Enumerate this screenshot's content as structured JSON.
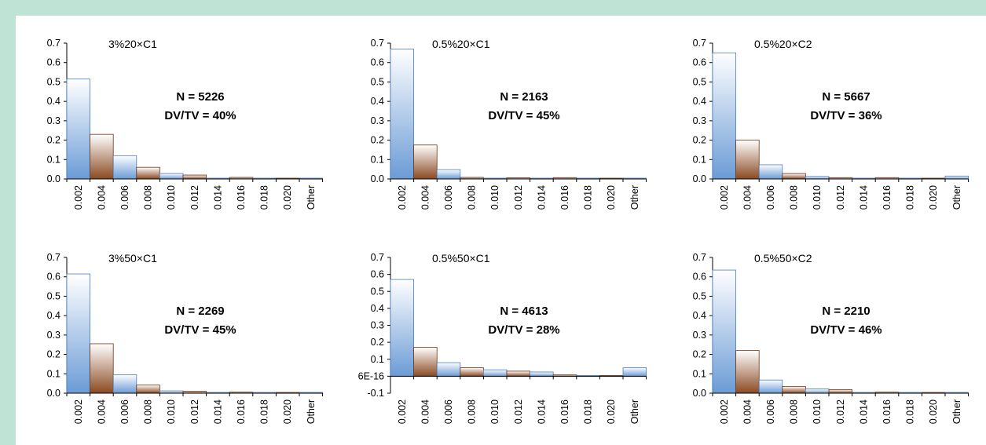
{
  "chart_data": [
    {
      "type": "bar",
      "title": "3%20×C1",
      "n_label": "N = 5226",
      "ratio_label": "DV/TV = 40%",
      "categories": [
        "0.002",
        "0.004",
        "0.006",
        "0.008",
        "0.010",
        "0.012",
        "0.014",
        "0.016",
        "0.018",
        "0.020",
        "Other"
      ],
      "values": [
        0.515,
        0.23,
        0.12,
        0.06,
        0.028,
        0.02,
        0.004,
        0.008,
        0.003,
        0.004,
        0.002
      ],
      "yticks": [
        "0.0",
        "0.1",
        "0.2",
        "0.3",
        "0.4",
        "0.5",
        "0.6",
        "0.7"
      ],
      "ylim": [
        0,
        0.7
      ]
    },
    {
      "type": "bar",
      "title": "0.5%20×C1",
      "n_label": "N = 2163",
      "ratio_label": "DV/TV = 45%",
      "categories": [
        "0.002",
        "0.004",
        "0.006",
        "0.008",
        "0.010",
        "0.012",
        "0.014",
        "0.016",
        "0.018",
        "0.020",
        "Other"
      ],
      "values": [
        0.67,
        0.175,
        0.048,
        0.008,
        0.003,
        0.006,
        0.003,
        0.007,
        0.002,
        0.004,
        0.002
      ],
      "yticks": [
        "0.0",
        "0.1",
        "0.2",
        "0.3",
        "0.4",
        "0.5",
        "0.6",
        "0.7"
      ],
      "ylim": [
        0,
        0.7
      ]
    },
    {
      "type": "bar",
      "title": "0.5%20×C2",
      "n_label": "N = 5667",
      "ratio_label": "DV/TV = 36%",
      "categories": [
        "0.002",
        "0.004",
        "0.006",
        "0.008",
        "0.010",
        "0.012",
        "0.014",
        "0.016",
        "0.018",
        "0.020",
        "Other"
      ],
      "values": [
        0.65,
        0.2,
        0.073,
        0.028,
        0.013,
        0.007,
        0.003,
        0.007,
        0.003,
        0.004,
        0.015
      ],
      "yticks": [
        "0.0",
        "0.1",
        "0.2",
        "0.3",
        "0.4",
        "0.5",
        "0.6",
        "0.7"
      ],
      "ylim": [
        0,
        0.7
      ]
    },
    {
      "type": "bar",
      "title": "3%50×C1",
      "n_label": "N = 2269",
      "ratio_label": "DV/TV = 45%",
      "categories": [
        "0.002",
        "0.004",
        "0.006",
        "0.008",
        "0.010",
        "0.012",
        "0.014",
        "0.016",
        "0.018",
        "0.020",
        "Other"
      ],
      "values": [
        0.615,
        0.255,
        0.095,
        0.042,
        0.012,
        0.01,
        0.003,
        0.006,
        0.002,
        0.004,
        0.002
      ],
      "yticks": [
        "0.0",
        "0.1",
        "0.2",
        "0.3",
        "0.4",
        "0.5",
        "0.6",
        "0.7"
      ],
      "ylim": [
        0,
        0.7
      ]
    },
    {
      "type": "bar",
      "title": "0.5%50×C1",
      "n_label": "N = 4613",
      "ratio_label": "DV/TV = 28%",
      "categories": [
        "0.002",
        "0.004",
        "0.006",
        "0.008",
        "0.010",
        "0.012",
        "0.014",
        "0.016",
        "0.018",
        "0.020",
        "Other"
      ],
      "values": [
        0.57,
        0.17,
        0.08,
        0.05,
        0.038,
        0.03,
        0.025,
        0.008,
        0.002,
        0.004,
        0.05
      ],
      "yticks": [
        "-0.1",
        "6E-16",
        "0.1",
        "0.2",
        "0.3",
        "0.4",
        "0.5",
        "0.6",
        "0.7"
      ],
      "ylim": [
        -0.1,
        0.7
      ]
    },
    {
      "type": "bar",
      "title": "0.5%50×C2",
      "n_label": "N = 2210",
      "ratio_label": "DV/TV = 46%",
      "categories": [
        "0.002",
        "0.004",
        "0.006",
        "0.008",
        "0.010",
        "0.012",
        "0.014",
        "0.016",
        "0.018",
        "0.020",
        "Other"
      ],
      "values": [
        0.635,
        0.22,
        0.068,
        0.035,
        0.022,
        0.018,
        0.003,
        0.006,
        0.002,
        0.004,
        0.002
      ],
      "yticks": [
        "0.0",
        "0.1",
        "0.2",
        "0.3",
        "0.4",
        "0.5",
        "0.6",
        "0.7"
      ],
      "ylim": [
        0,
        0.7
      ]
    }
  ]
}
